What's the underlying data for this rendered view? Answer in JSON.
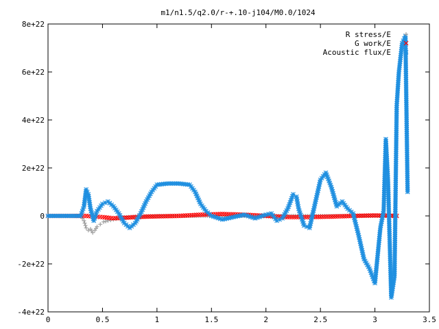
{
  "chart_data": {
    "type": "scatter",
    "title": "m1/n1.5/q2.0/r-+.10-j104/M0.0/1024",
    "xlabel": "",
    "ylabel": "",
    "xlim": [
      0,
      3.5
    ],
    "ylim": [
      -4e+22,
      8e+22
    ],
    "grid": false,
    "legend_position": "top-right",
    "x_ticks": [
      {
        "value": 0,
        "label": "0"
      },
      {
        "value": 0.5,
        "label": "0.5"
      },
      {
        "value": 1,
        "label": "1"
      },
      {
        "value": 1.5,
        "label": "1.5"
      },
      {
        "value": 2,
        "label": "2"
      },
      {
        "value": 2.5,
        "label": "2.5"
      },
      {
        "value": 3,
        "label": "3"
      },
      {
        "value": 3.5,
        "label": "3.5"
      }
    ],
    "y_ticks": [
      {
        "value": -4e+22,
        "label": "-4e+22"
      },
      {
        "value": -2e+22,
        "label": "-2e+22"
      },
      {
        "value": 0,
        "label": "0"
      },
      {
        "value": 2e+22,
        "label": "2e+22"
      },
      {
        "value": 4e+22,
        "label": "4e+22"
      },
      {
        "value": 6e+22,
        "label": "6e+22"
      },
      {
        "value": 8e+22,
        "label": "8e+22"
      }
    ],
    "series": [
      {
        "name": "R stress/E",
        "color": "#a0a0a0",
        "marker": "plus",
        "points": [
          [
            0.0,
            0
          ],
          [
            0.1,
            0
          ],
          [
            0.2,
            0
          ],
          [
            0.3,
            0
          ],
          [
            0.33,
            -2e+21
          ],
          [
            0.35,
            -5e+21
          ],
          [
            0.37,
            -6e+21
          ],
          [
            0.39,
            -5.5e+21
          ],
          [
            0.41,
            -7e+21
          ],
          [
            0.43,
            -6e+21
          ],
          [
            0.45,
            -4.5e+21
          ],
          [
            0.48,
            -3.5e+21
          ],
          [
            0.51,
            -2.5e+21
          ],
          [
            0.55,
            -2e+21
          ],
          [
            0.6,
            -1.5e+21
          ],
          [
            0.65,
            -1e+21
          ],
          [
            0.7,
            -6e+20
          ],
          [
            0.8,
            -3e+20
          ],
          [
            1.0,
            0
          ],
          [
            1.5,
            0
          ],
          [
            2.0,
            0
          ],
          [
            2.5,
            0
          ],
          [
            2.9,
            0
          ],
          [
            3.2,
            0
          ]
        ]
      },
      {
        "name": "G work/E",
        "color": "#ff0000",
        "marker": "cross",
        "points": [
          [
            0.0,
            0
          ],
          [
            0.2,
            0
          ],
          [
            0.35,
            0
          ],
          [
            0.5,
            -5e+20
          ],
          [
            0.6,
            -1e+21
          ],
          [
            0.7,
            -8e+20
          ],
          [
            0.8,
            -5e+20
          ],
          [
            0.9,
            -3e+20
          ],
          [
            1.0,
            -2e+20
          ],
          [
            1.2,
            0.0
          ],
          [
            1.4,
            5e+20
          ],
          [
            1.6,
            8e+20
          ],
          [
            1.8,
            5e+20
          ],
          [
            2.0,
            0.0
          ],
          [
            2.2,
            -5e+20
          ],
          [
            2.4,
            -5e+20
          ],
          [
            2.6,
            -3e+20
          ],
          [
            2.8,
            0.0
          ],
          [
            3.0,
            2e+20
          ],
          [
            3.2,
            0.0
          ]
        ]
      },
      {
        "name": "Acoustic flux/E",
        "color": "#1f8fe0",
        "marker": "star",
        "points": [
          [
            0.0,
            0
          ],
          [
            0.1,
            0
          ],
          [
            0.2,
            0
          ],
          [
            0.3,
            0
          ],
          [
            0.33,
            4e+21
          ],
          [
            0.35,
            1.1e+22
          ],
          [
            0.37,
            9e+21
          ],
          [
            0.39,
            3e+21
          ],
          [
            0.42,
            -2e+21
          ],
          [
            0.45,
            2e+21
          ],
          [
            0.5,
            5e+21
          ],
          [
            0.55,
            6e+21
          ],
          [
            0.6,
            4e+21
          ],
          [
            0.65,
            1e+21
          ],
          [
            0.7,
            -3e+21
          ],
          [
            0.75,
            -5e+21
          ],
          [
            0.8,
            -3e+21
          ],
          [
            0.85,
            1e+21
          ],
          [
            0.9,
            6e+21
          ],
          [
            0.95,
            1e+22
          ],
          [
            1.0,
            1.3e+22
          ],
          [
            1.1,
            1.35e+22
          ],
          [
            1.2,
            1.35e+22
          ],
          [
            1.3,
            1.3e+22
          ],
          [
            1.35,
            1e+22
          ],
          [
            1.4,
            5e+21
          ],
          [
            1.45,
            2e+21
          ],
          [
            1.5,
            0.0
          ],
          [
            1.6,
            -1.5e+21
          ],
          [
            1.7,
            -5e+20
          ],
          [
            1.8,
            5e+20
          ],
          [
            1.9,
            -1e+21
          ],
          [
            2.0,
            5e+20
          ],
          [
            2.05,
            1e+21
          ],
          [
            2.1,
            -2e+21
          ],
          [
            2.15,
            -1e+21
          ],
          [
            2.2,
            3e+21
          ],
          [
            2.25,
            9e+21
          ],
          [
            2.28,
            8e+21
          ],
          [
            2.3,
            3e+21
          ],
          [
            2.35,
            -4e+21
          ],
          [
            2.4,
            -5e+21
          ],
          [
            2.45,
            5e+21
          ],
          [
            2.5,
            1.5e+22
          ],
          [
            2.55,
            1.8e+22
          ],
          [
            2.6,
            1.2e+22
          ],
          [
            2.65,
            4e+21
          ],
          [
            2.7,
            6e+21
          ],
          [
            2.75,
            3e+21
          ],
          [
            2.8,
            1e+21
          ],
          [
            2.85,
            -8e+21
          ],
          [
            2.9,
            -1.8e+22
          ],
          [
            2.95,
            -2.2e+22
          ],
          [
            3.0,
            -2.8e+22
          ],
          [
            3.05,
            -5e+21
          ],
          [
            3.08,
            2e+21
          ],
          [
            3.1,
            3.2e+22
          ],
          [
            3.12,
            1.5e+22
          ],
          [
            3.15,
            -3.4e+22
          ],
          [
            3.18,
            -2.5e+22
          ],
          [
            3.2,
            4.6e+22
          ],
          [
            3.22,
            6e+22
          ],
          [
            3.25,
            7.2e+22
          ],
          [
            3.28,
            7.5e+22
          ],
          [
            3.3,
            1e+22
          ]
        ]
      }
    ]
  }
}
